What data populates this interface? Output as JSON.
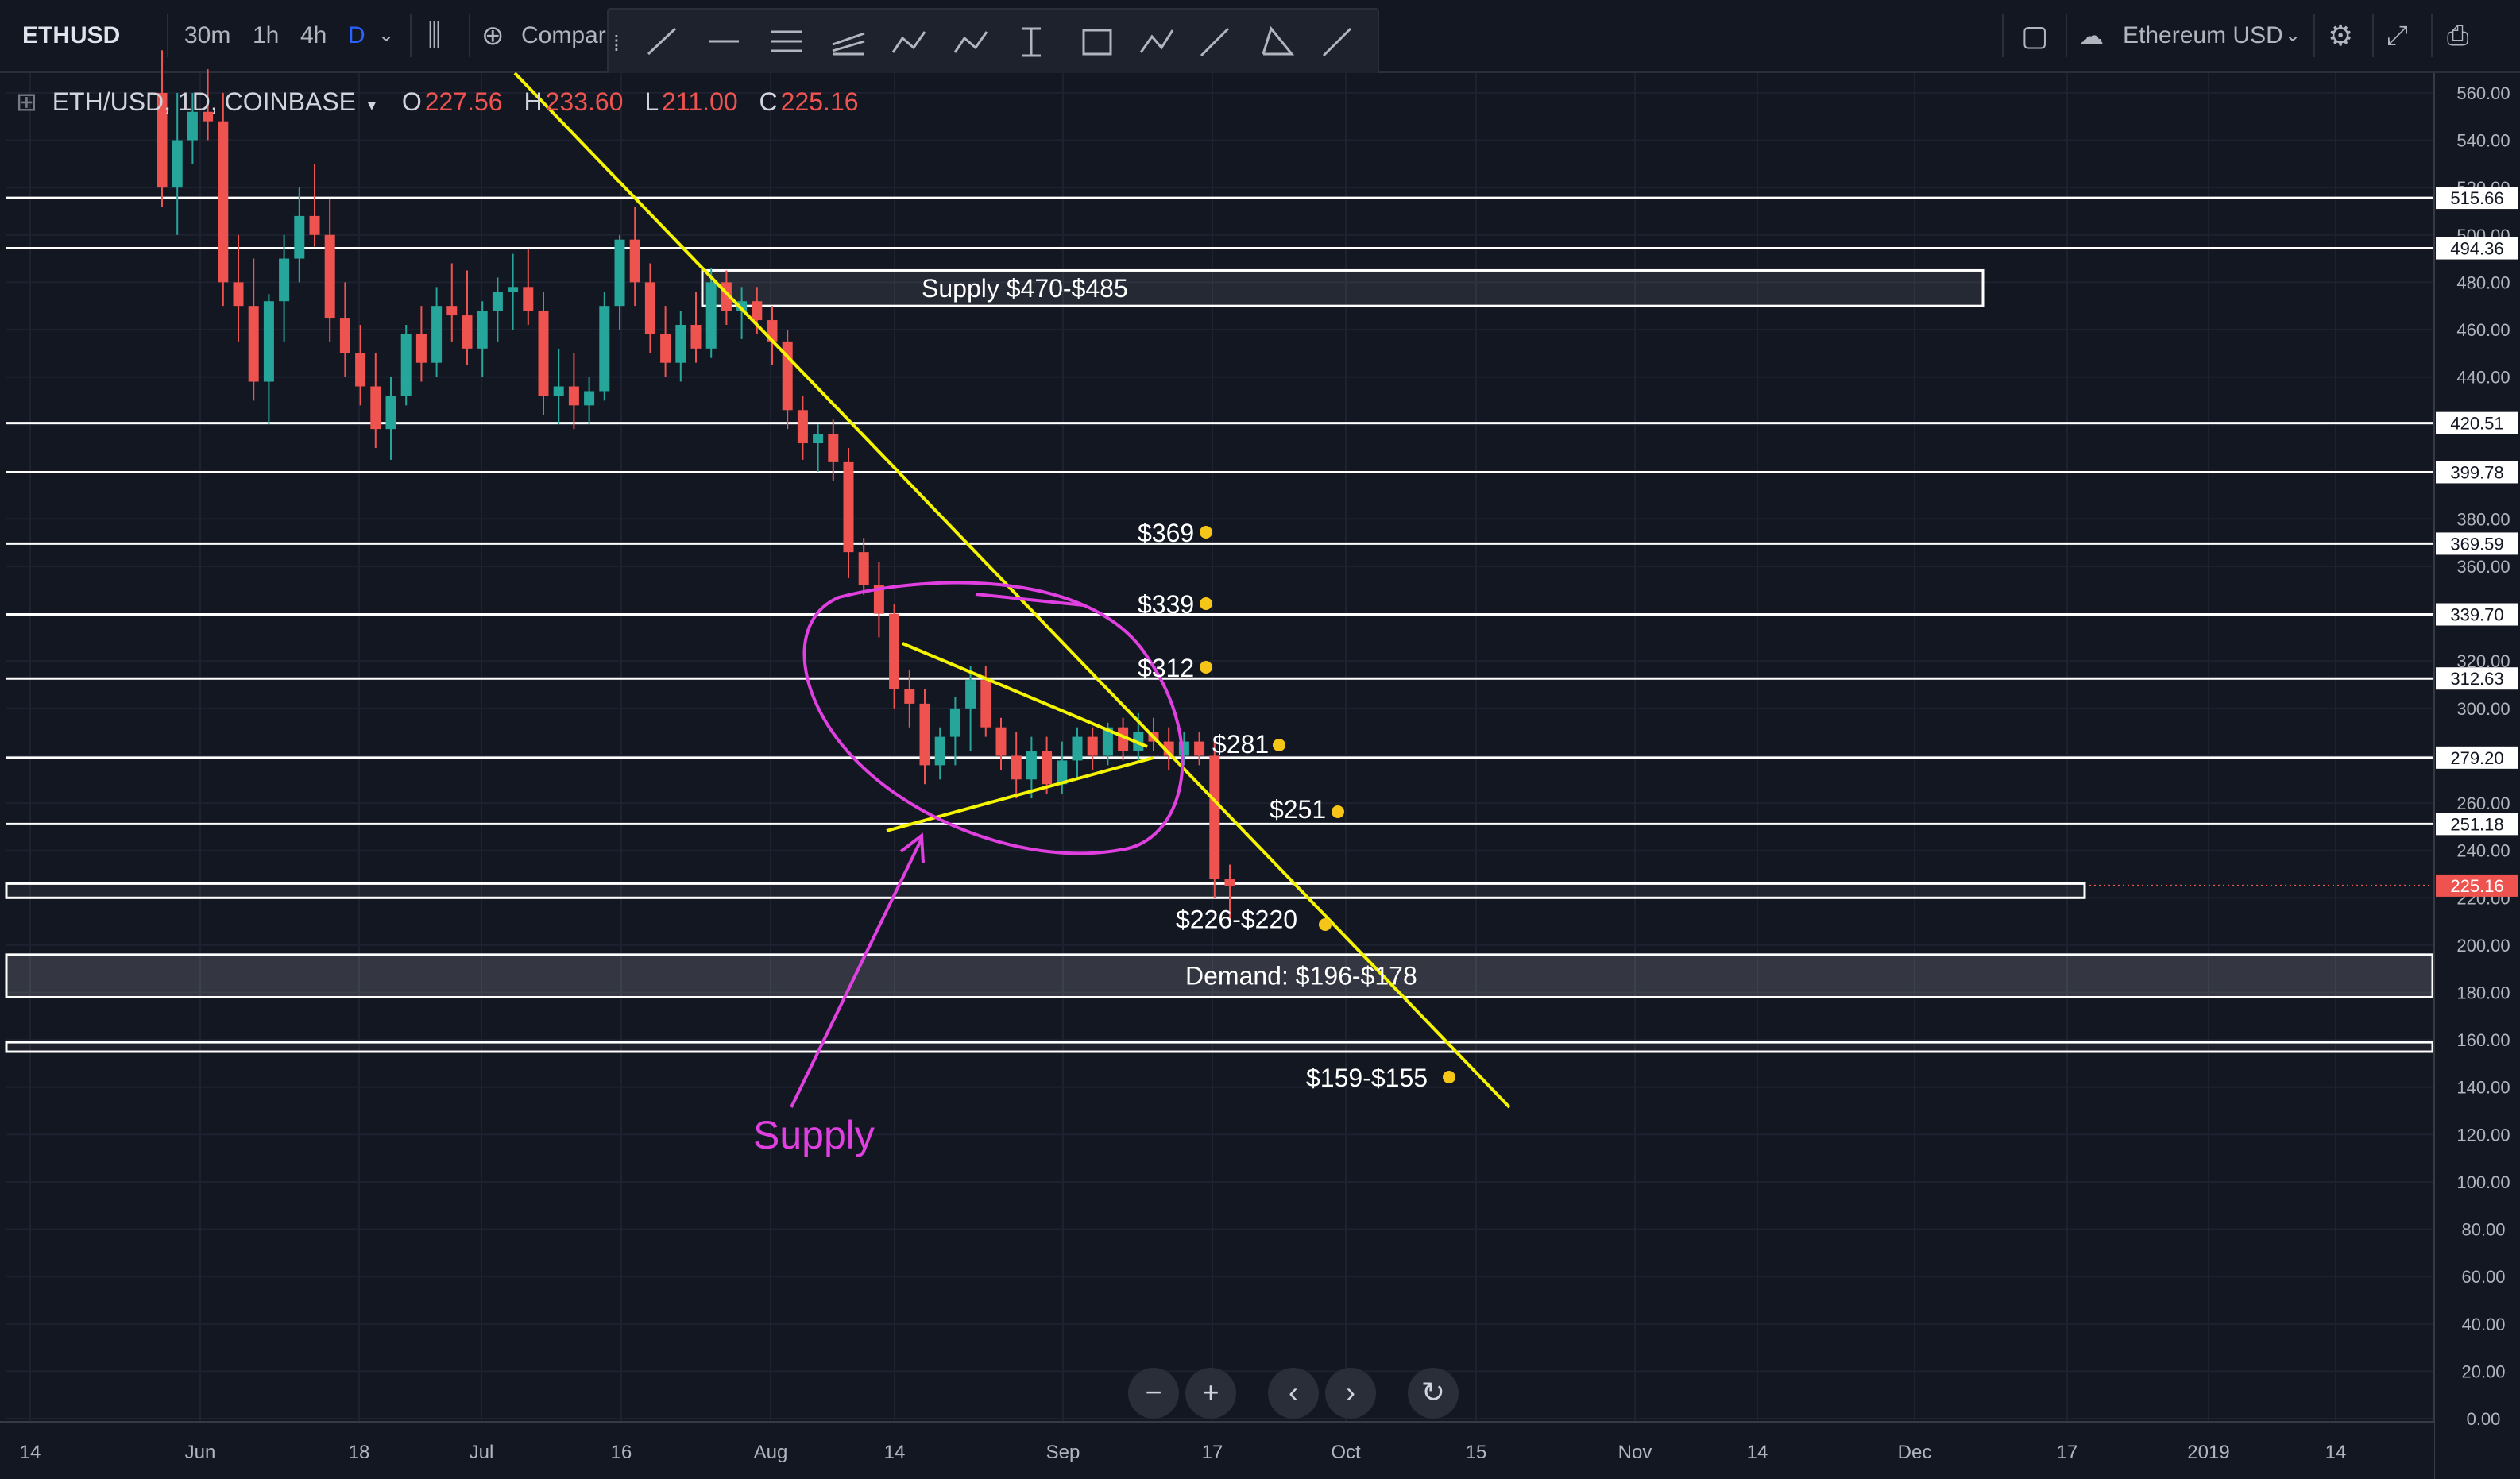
{
  "toolbar": {
    "symbol": "ETHUSD",
    "intervals": [
      "30m",
      "1h",
      "4h",
      "D"
    ],
    "active_interval": "D",
    "compare_label": "Compare",
    "currency_label": "Ethereum USD"
  },
  "legend": {
    "title": "ETH/USD, 1D, COINBASE",
    "open_label": "O",
    "open": "227.56",
    "high_label": "H",
    "high": "233.60",
    "low_label": "L",
    "low": "211.00",
    "close_label": "C",
    "close": "225.16"
  },
  "colors": {
    "background": "#131722",
    "up": "#26a69a",
    "down": "#ef5350",
    "trendline": "#f5f500",
    "annotation": "#e040e0",
    "level": "#ffffff",
    "price_badge": "#ef5350"
  },
  "chart_data": {
    "type": "candlestick",
    "title": "ETH/USD, 1D, COINBASE",
    "y_axis": {
      "min": 0,
      "max": 570,
      "position": "right",
      "ticks": [
        "560.00",
        "540.00",
        "520.00",
        "500.00",
        "480.00",
        "460.00",
        "440.00",
        "420.00",
        "400.00",
        "380.00",
        "360.00",
        "340.00",
        "320.00",
        "300.00",
        "280.00",
        "260.00",
        "240.00",
        "220.00",
        "200.00",
        "180.00",
        "160.00",
        "140.00",
        "120.00",
        "100.00",
        "80.00",
        "60.00",
        "40.00",
        "20.00",
        "0.00"
      ]
    },
    "x_axis": {
      "ticks": [
        "14",
        "Jun",
        "18",
        "Jul",
        "16",
        "Aug",
        "14",
        "Sep",
        "17",
        "Oct",
        "15",
        "Nov",
        "14",
        "Dec",
        "17",
        "2019",
        "14"
      ]
    },
    "candles": [
      [
        560,
        578,
        512,
        520
      ],
      [
        520,
        560,
        500,
        540
      ],
      [
        540,
        560,
        530,
        552
      ],
      [
        552,
        570,
        540,
        548
      ],
      [
        548,
        560,
        470,
        480
      ],
      [
        480,
        500,
        455,
        470
      ],
      [
        470,
        490,
        430,
        438
      ],
      [
        438,
        475,
        420,
        472
      ],
      [
        472,
        500,
        455,
        490
      ],
      [
        490,
        520,
        480,
        508
      ],
      [
        508,
        530,
        495,
        500
      ],
      [
        500,
        515,
        455,
        465
      ],
      [
        465,
        480,
        440,
        450
      ],
      [
        450,
        462,
        428,
        436
      ],
      [
        436,
        450,
        410,
        418
      ],
      [
        418,
        440,
        405,
        432
      ],
      [
        432,
        462,
        428,
        458
      ],
      [
        458,
        470,
        438,
        446
      ],
      [
        446,
        478,
        440,
        470
      ],
      [
        470,
        488,
        455,
        466
      ],
      [
        466,
        485,
        445,
        452
      ],
      [
        452,
        472,
        440,
        468
      ],
      [
        468,
        482,
        455,
        476
      ],
      [
        476,
        492,
        460,
        478
      ],
      [
        478,
        494,
        462,
        468
      ],
      [
        468,
        476,
        424,
        432
      ],
      [
        432,
        452,
        420,
        436
      ],
      [
        436,
        450,
        418,
        428
      ],
      [
        428,
        440,
        420,
        434
      ],
      [
        434,
        476,
        430,
        470
      ],
      [
        470,
        500,
        460,
        498
      ],
      [
        498,
        512,
        470,
        480
      ],
      [
        480,
        488,
        450,
        458
      ],
      [
        458,
        470,
        440,
        446
      ],
      [
        446,
        468,
        438,
        462
      ],
      [
        462,
        476,
        446,
        452
      ],
      [
        452,
        486,
        448,
        480
      ],
      [
        480,
        485,
        462,
        468
      ],
      [
        468,
        478,
        456,
        472
      ],
      [
        472,
        478,
        458,
        464
      ],
      [
        464,
        470,
        445,
        455
      ],
      [
        455,
        460,
        418,
        426
      ],
      [
        426,
        432,
        405,
        412
      ],
      [
        412,
        420,
        400,
        416
      ],
      [
        416,
        422,
        396,
        404
      ],
      [
        404,
        410,
        355,
        366
      ],
      [
        366,
        372,
        348,
        352
      ],
      [
        352,
        362,
        330,
        340
      ],
      [
        340,
        344,
        300,
        308
      ],
      [
        308,
        316,
        292,
        302
      ],
      [
        302,
        308,
        268,
        276
      ],
      [
        276,
        292,
        270,
        288
      ],
      [
        288,
        305,
        276,
        300
      ],
      [
        300,
        318,
        282,
        312
      ],
      [
        312,
        318,
        288,
        292
      ],
      [
        292,
        296,
        274,
        280
      ],
      [
        280,
        290,
        262,
        270
      ],
      [
        270,
        288,
        262,
        282
      ],
      [
        282,
        288,
        264,
        268
      ],
      [
        268,
        286,
        264,
        278
      ],
      [
        278,
        292,
        270,
        288
      ],
      [
        288,
        292,
        274,
        280
      ],
      [
        280,
        294,
        276,
        292
      ],
      [
        292,
        296,
        278,
        282
      ],
      [
        282,
        298,
        278,
        290
      ],
      [
        290,
        296,
        282,
        286
      ],
      [
        286,
        292,
        274,
        280
      ],
      [
        280,
        290,
        276,
        286
      ],
      [
        286,
        290,
        276,
        280
      ],
      [
        280,
        286,
        220,
        228
      ],
      [
        228,
        234,
        211,
        225
      ]
    ],
    "levels": [
      {
        "value": 515.66,
        "label": "515.66"
      },
      {
        "value": 494.36,
        "label": "494.36"
      },
      {
        "value": 420.51,
        "label": "420.51"
      },
      {
        "value": 399.78,
        "label": "399.78"
      },
      {
        "value": 369.59,
        "label": "369.59"
      },
      {
        "value": 339.7,
        "label": "339.70"
      },
      {
        "value": 312.63,
        "label": "312.63"
      },
      {
        "value": 279.2,
        "label": "279.20"
      },
      {
        "value": 251.18,
        "label": "251.18"
      }
    ],
    "current_price": {
      "value": 225.16,
      "label": "225.16"
    },
    "zones": [
      {
        "label": "Supply $470-$485",
        "low": 470,
        "high": 485
      },
      {
        "label": "$226-$220",
        "low": 220,
        "high": 226
      },
      {
        "label": "Demand: $196-$178",
        "low": 178,
        "high": 196
      },
      {
        "label": "$159-$155",
        "low": 155,
        "high": 159
      }
    ],
    "annotations": [
      "$369",
      "$339",
      "$312",
      "$281",
      "$251"
    ],
    "arrow_label": "Supply"
  },
  "navigation": {
    "zoom_out": "−",
    "zoom_in": "+",
    "prev": "‹",
    "next": "›",
    "reset": "↻"
  }
}
